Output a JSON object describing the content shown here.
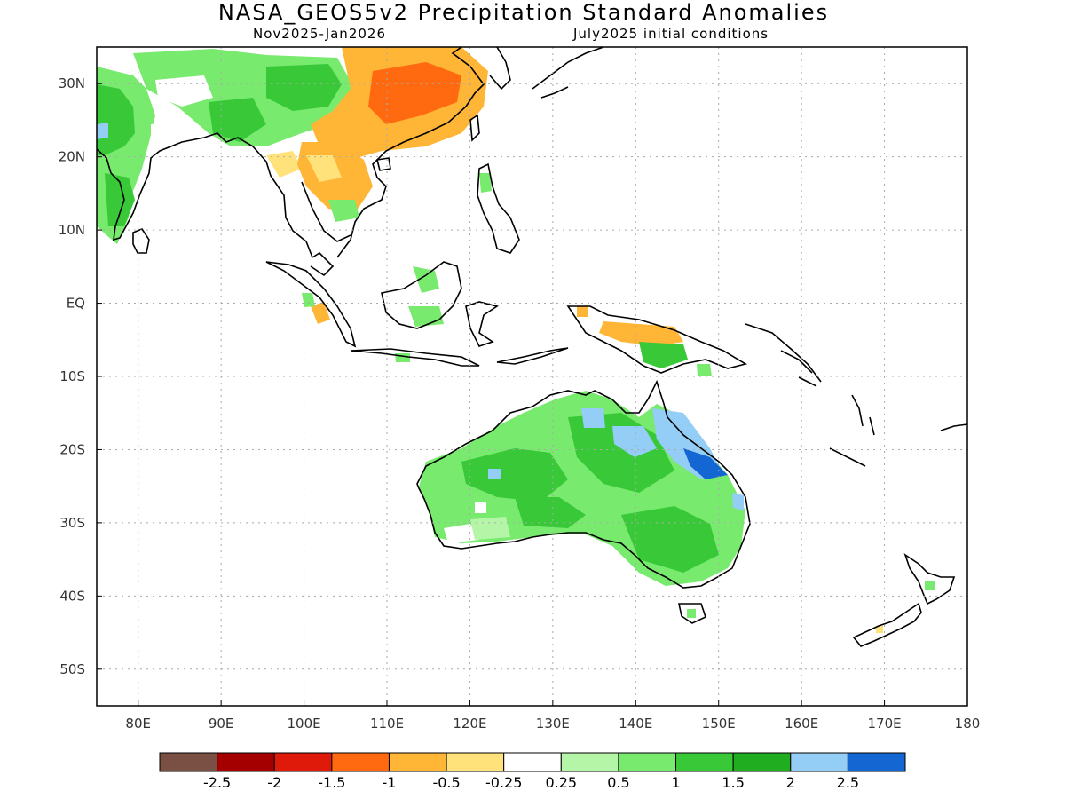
{
  "header": {
    "title": "NASA_GEOS5v2 Precipitation Standard Anomalies",
    "period": "Nov2025-Jan2026",
    "init": "July2025 initial conditions"
  },
  "map": {
    "lon_range": [
      75,
      180
    ],
    "lat_range": [
      -55,
      35
    ],
    "lon_ticks": [
      {
        "value": 80,
        "label": "80E"
      },
      {
        "value": 90,
        "label": "90E"
      },
      {
        "value": 100,
        "label": "100E"
      },
      {
        "value": 110,
        "label": "110E"
      },
      {
        "value": 120,
        "label": "120E"
      },
      {
        "value": 130,
        "label": "130E"
      },
      {
        "value": 140,
        "label": "140E"
      },
      {
        "value": 150,
        "label": "150E"
      },
      {
        "value": 160,
        "label": "160E"
      },
      {
        "value": 170,
        "label": "170E"
      },
      {
        "value": 180,
        "label": "180"
      }
    ],
    "lat_ticks": [
      {
        "value": 30,
        "label": "30N"
      },
      {
        "value": 20,
        "label": "20N"
      },
      {
        "value": 10,
        "label": "10N"
      },
      {
        "value": 0,
        "label": "EQ"
      },
      {
        "value": -10,
        "label": "10S"
      },
      {
        "value": -20,
        "label": "20S"
      },
      {
        "value": -30,
        "label": "30S"
      },
      {
        "value": -40,
        "label": "40S"
      },
      {
        "value": -50,
        "label": "50S"
      }
    ],
    "grid": true
  },
  "legend": {
    "colors": [
      "#7a5044",
      "#a50000",
      "#e01a0a",
      "#ff6a10",
      "#ffb535",
      "#ffe37a",
      "#ffffff",
      "#b5f5a8",
      "#78ea6e",
      "#38c838",
      "#20ad20",
      "#94cdf5",
      "#1466d2"
    ],
    "labels": [
      "-2.5",
      "-2",
      "-1.5",
      "-1",
      "-0.5",
      "-0.25",
      "0.25",
      "0.5",
      "1",
      "1.5",
      "2",
      "2.5"
    ]
  },
  "colors": {
    "dry_strong": "#ff6a10",
    "dry_moderate": "#ffb535",
    "dry_weak": "#ffe37a",
    "wet_weak": "#b5f5a8",
    "wet_moderate": "#78ea6e",
    "wet_strong": "#38c838",
    "wet_very": "#20ad20",
    "wet_extreme": "#94cdf5",
    "wet_max": "#1466d2"
  }
}
